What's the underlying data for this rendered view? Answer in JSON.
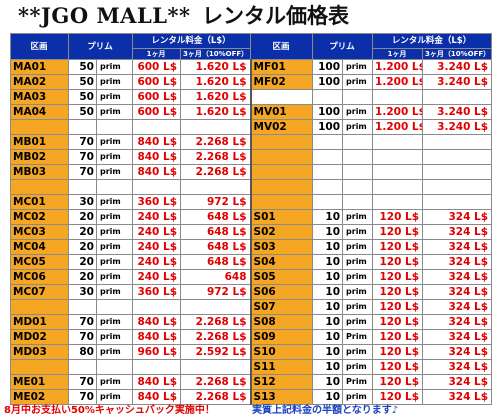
{
  "title": {
    "brand": "**JGO MALL**",
    "suffix": "レンタル価格表"
  },
  "headers": {
    "zone": "区画",
    "prim": "プリム",
    "fee": "レンタル料金（L$）",
    "one_month": "1ヶ月",
    "three_month": "3ヶ月（10%OFF）"
  },
  "rows": [
    {
      "l": [
        "MA01",
        "50",
        "prim",
        "600 L$",
        "1.620 L$"
      ],
      "r": [
        "MF01",
        "100",
        "prim",
        "1.200 L$",
        "3.240 L$"
      ]
    },
    {
      "l": [
        "MA02",
        "50",
        "prim",
        "600 L$",
        "1.620 L$"
      ],
      "r": [
        "MF02",
        "100",
        "prim",
        "1.200 L$",
        "3.240 L$"
      ]
    },
    {
      "l": [
        "MA03",
        "50",
        "prim",
        "600 L$",
        "1.620 L$"
      ],
      "r": [
        "",
        "",
        "",
        "",
        ""
      ]
    },
    {
      "l": [
        "MA04",
        "50",
        "prim",
        "600 L$",
        "1.620 L$"
      ],
      "r": [
        "MV01",
        "100",
        "prim",
        "1.200 L$",
        "3.240 L$"
      ]
    },
    {
      "l": [
        "",
        "",
        "",
        "",
        ""
      ],
      "r": [
        "MV02",
        "100",
        "prim",
        "1.200 L$",
        "3.240 L$"
      ]
    },
    {
      "l": [
        "MB01",
        "70",
        "prim",
        "840 L$",
        "2.268 L$"
      ],
      "r": [
        "",
        "",
        "",
        "",
        ""
      ]
    },
    {
      "l": [
        "MB02",
        "70",
        "prim",
        "840 L$",
        "2.268 L$"
      ],
      "r": [
        "",
        "",
        "",
        "",
        ""
      ]
    },
    {
      "l": [
        "MB03",
        "70",
        "prim",
        "840 L$",
        "2.268 L$"
      ],
      "r": [
        "",
        "",
        "",
        "",
        ""
      ]
    },
    {
      "l": [
        "",
        "",
        "",
        "",
        ""
      ],
      "r": [
        "",
        "",
        "",
        "",
        ""
      ]
    },
    {
      "l": [
        "MC01",
        "30",
        "prim",
        "360 L$",
        "972 L$"
      ],
      "r": [
        "",
        "",
        "",
        "",
        ""
      ]
    },
    {
      "l": [
        "MC02",
        "20",
        "prim",
        "240 L$",
        "648 L$"
      ],
      "r": [
        "S01",
        "10",
        "prim",
        "120 L$",
        "324 L$"
      ]
    },
    {
      "l": [
        "MC03",
        "20",
        "prim",
        "240 L$",
        "648 L$"
      ],
      "r": [
        "S02",
        "10",
        "prim",
        "120 L$",
        "324 L$"
      ]
    },
    {
      "l": [
        "MC04",
        "20",
        "prim",
        "240 L$",
        "648 L$"
      ],
      "r": [
        "S03",
        "10",
        "prim",
        "120 L$",
        "324 L$"
      ]
    },
    {
      "l": [
        "MC05",
        "20",
        "prim",
        "240 L$",
        "648 L$"
      ],
      "r": [
        "S04",
        "10",
        "prim",
        "120 L$",
        "324 L$"
      ]
    },
    {
      "l": [
        "MC06",
        "20",
        "prim",
        "240 L$",
        "648"
      ],
      "r": [
        "S05",
        "10",
        "prim",
        "120 L$",
        "324 L$"
      ]
    },
    {
      "l": [
        "MC07",
        "30",
        "prim",
        "360 L$",
        "972 L$"
      ],
      "r": [
        "S06",
        "10",
        "prim",
        "120 L$",
        "324 L$"
      ]
    },
    {
      "l": [
        "",
        "",
        "",
        "",
        ""
      ],
      "r": [
        "S07",
        "10",
        "prim",
        "120 L$",
        "324 L$"
      ]
    },
    {
      "l": [
        "MD01",
        "70",
        "prim",
        "840 L$",
        "2.268 L$"
      ],
      "r": [
        "S08",
        "10",
        "prim",
        "120 L$",
        "324 L$"
      ]
    },
    {
      "l": [
        "MD02",
        "70",
        "prim",
        "840 L$",
        "2.268 L$"
      ],
      "r": [
        "S09",
        "10",
        "Prim",
        "120 L$",
        "324 L$"
      ]
    },
    {
      "l": [
        "MD03",
        "80",
        "prim",
        "960 L$",
        "2.592 L$"
      ],
      "r": [
        "S10",
        "10",
        "prim",
        "120 L$",
        "324 L$"
      ]
    },
    {
      "l": [
        "",
        "",
        "",
        "",
        ""
      ],
      "r": [
        "S11",
        "10",
        "prim",
        "120 L$",
        "324 L$"
      ]
    },
    {
      "l": [
        "ME01",
        "70",
        "prim",
        "840 L$",
        "2.268 L$"
      ],
      "r": [
        "S12",
        "10",
        "Prim",
        "120 L$",
        "324 L$"
      ]
    },
    {
      "l": [
        "ME02",
        "70",
        "prim",
        "840 L$",
        "2.268 L$"
      ],
      "r": [
        "S13",
        "10",
        "prim",
        "120 L$",
        "324 L$"
      ]
    }
  ],
  "footer": {
    "left": "8月中お支払い50%キャッシュバック実施中！",
    "right": "実質上記料金の半額となります♪"
  },
  "colors": {
    "header_bg": "#0a2fa8",
    "zone_bg": "#f5a623",
    "price": "#e00000",
    "footer_left": "#e00000",
    "footer_right": "#1a3fbf"
  }
}
